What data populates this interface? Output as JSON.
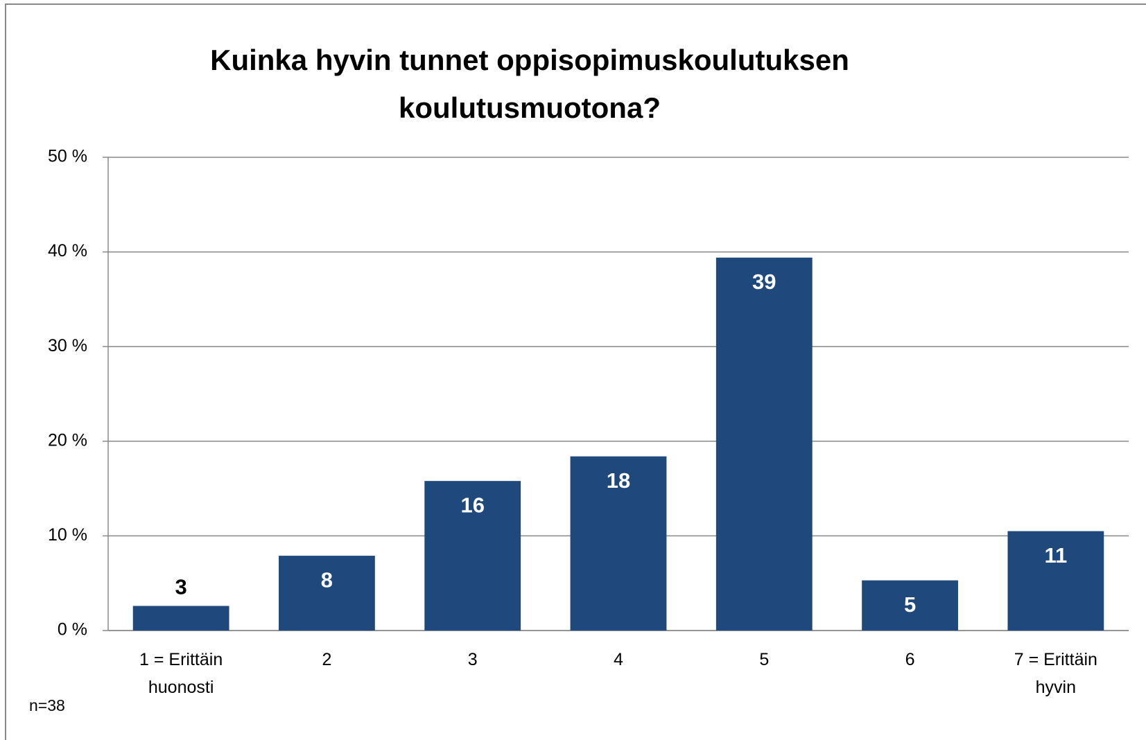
{
  "chart_data": {
    "type": "bar",
    "title": "Kuinka hyvin tunnet oppisopimuskoulutuksen koulutusmuotona?",
    "categories": [
      "1 = Erittäin huonosti",
      "2",
      "3",
      "4",
      "5",
      "6",
      "7 = Erittäin hyvin"
    ],
    "values": [
      2.6,
      7.9,
      15.8,
      18.4,
      39.4,
      5.3,
      10.5
    ],
    "value_labels": [
      "3",
      "8",
      "16",
      "18",
      "39",
      "5",
      "11"
    ],
    "color": "#1f497d",
    "ylim": [
      0,
      50
    ],
    "yticks": [
      {
        "value": 0,
        "label": "0 %"
      },
      {
        "value": 10,
        "label": "10 %"
      },
      {
        "value": 20,
        "label": "20 %"
      },
      {
        "value": 30,
        "label": "30 %"
      },
      {
        "value": 40,
        "label": "40 %"
      },
      {
        "value": 50,
        "label": "50 %"
      }
    ],
    "grid": true,
    "note": "n=38"
  }
}
